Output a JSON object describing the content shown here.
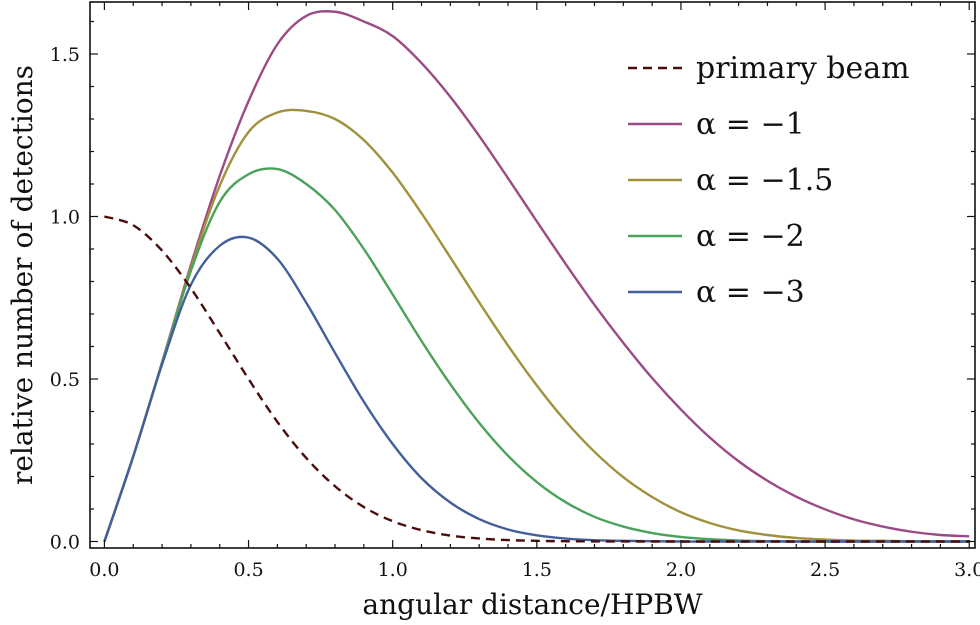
{
  "chart_data": {
    "type": "line",
    "title": "",
    "xlabel": "angular distance/HPBW",
    "ylabel": "relative number of detections",
    "xlim": [
      -0.05,
      3.02
    ],
    "ylim": [
      -0.02,
      1.66
    ],
    "x_ticks": [
      0.0,
      0.5,
      1.0,
      1.5,
      2.0,
      2.5,
      3.0
    ],
    "x_tick_labels": [
      "0.0",
      "0.5",
      "1.0",
      "1.5",
      "2.0",
      "2.5",
      "3.0"
    ],
    "y_ticks": [
      0.0,
      0.5,
      1.0,
      1.5
    ],
    "y_tick_labels": [
      "0.0",
      "0.5",
      "1.0",
      "1.5"
    ],
    "grid": false,
    "legend_position": "top-right",
    "x": [
      0.0,
      0.1,
      0.2,
      0.3,
      0.4,
      0.5,
      0.6,
      0.7,
      0.8,
      0.9,
      1.0,
      1.1,
      1.2,
      1.3,
      1.4,
      1.5,
      1.6,
      1.7,
      1.8,
      1.9,
      2.0,
      2.1,
      2.2,
      2.3,
      2.4,
      2.5,
      2.6,
      2.7,
      2.8,
      2.9,
      3.0
    ],
    "series": [
      {
        "name": "primary beam",
        "color": "#4a0d0d",
        "dash": "dashed",
        "values": [
          1.0,
          0.973,
          0.895,
          0.779,
          0.641,
          0.5,
          0.368,
          0.257,
          0.17,
          0.106,
          0.0625,
          0.035,
          0.0183,
          0.0093,
          0.0043,
          0.002,
          0.0008,
          0.0003,
          0.0001,
          0.0,
          0.0,
          0.0,
          0.0,
          0.0,
          0.0,
          0.0,
          0.0,
          0.0,
          0.0,
          0.0,
          0.0
        ]
      },
      {
        "name": "α = −1",
        "color": "#9c4a86",
        "dash": "solid",
        "values": [
          0.0,
          0.262,
          0.552,
          0.851,
          1.125,
          1.355,
          1.53,
          1.617,
          1.63,
          1.6,
          1.555,
          1.472,
          1.368,
          1.248,
          1.118,
          0.985,
          0.854,
          0.728,
          0.611,
          0.503,
          0.406,
          0.32,
          0.247,
          0.187,
          0.138,
          0.099,
          0.068,
          0.046,
          0.03,
          0.02,
          0.016
        ]
      },
      {
        "name": "α = −1.5",
        "color": "#a2913c",
        "dash": "solid",
        "values": [
          0.0,
          0.262,
          0.55,
          0.843,
          1.095,
          1.26,
          1.32,
          1.325,
          1.3,
          1.235,
          1.135,
          1.01,
          0.874,
          0.736,
          0.603,
          0.48,
          0.37,
          0.276,
          0.198,
          0.137,
          0.09,
          0.057,
          0.034,
          0.02,
          0.011,
          0.006,
          0.003,
          0.002,
          0.001,
          0.0,
          0.0
        ]
      },
      {
        "name": "α = −2",
        "color": "#4aa25a",
        "dash": "solid",
        "values": [
          0.0,
          0.262,
          0.548,
          0.833,
          1.045,
          1.13,
          1.146,
          1.1,
          1.02,
          0.9,
          0.76,
          0.617,
          0.484,
          0.365,
          0.264,
          0.183,
          0.121,
          0.076,
          0.046,
          0.026,
          0.014,
          0.007,
          0.003,
          0.001,
          0.0,
          0.0,
          0.0,
          0.0,
          0.0,
          0.0,
          0.0
        ]
      },
      {
        "name": "α = −3",
        "color": "#435f9b",
        "dash": "solid",
        "values": [
          0.0,
          0.262,
          0.545,
          0.79,
          0.91,
          0.935,
          0.87,
          0.735,
          0.58,
          0.43,
          0.3,
          0.195,
          0.12,
          0.069,
          0.037,
          0.019,
          0.009,
          0.004,
          0.002,
          0.001,
          0.0,
          0.0,
          0.0,
          0.0,
          0.0,
          0.0,
          0.0,
          0.0,
          0.0,
          0.0,
          0.0
        ]
      }
    ]
  }
}
